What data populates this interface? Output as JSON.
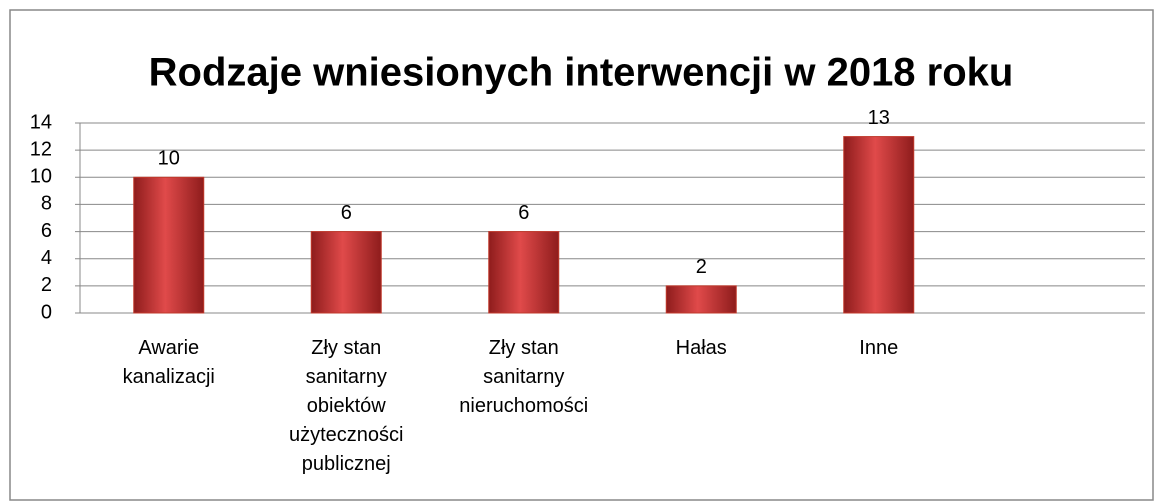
{
  "chart_data": {
    "type": "bar",
    "title": "Rodzaje wniesionych interwencji w 2018 roku",
    "categories": [
      "Awarie kanalizacji",
      "Zły stan sanitarny obiektów użyteczności publicznej",
      "Zły stan sanitarny nieruchomości",
      "Hałas",
      "Inne"
    ],
    "values": [
      10,
      6,
      6,
      2,
      13
    ],
    "color": "#c0392b",
    "ylim": [
      0,
      14
    ],
    "yticks": [
      0,
      2,
      4,
      6,
      8,
      10,
      12,
      14
    ],
    "grid": true
  }
}
